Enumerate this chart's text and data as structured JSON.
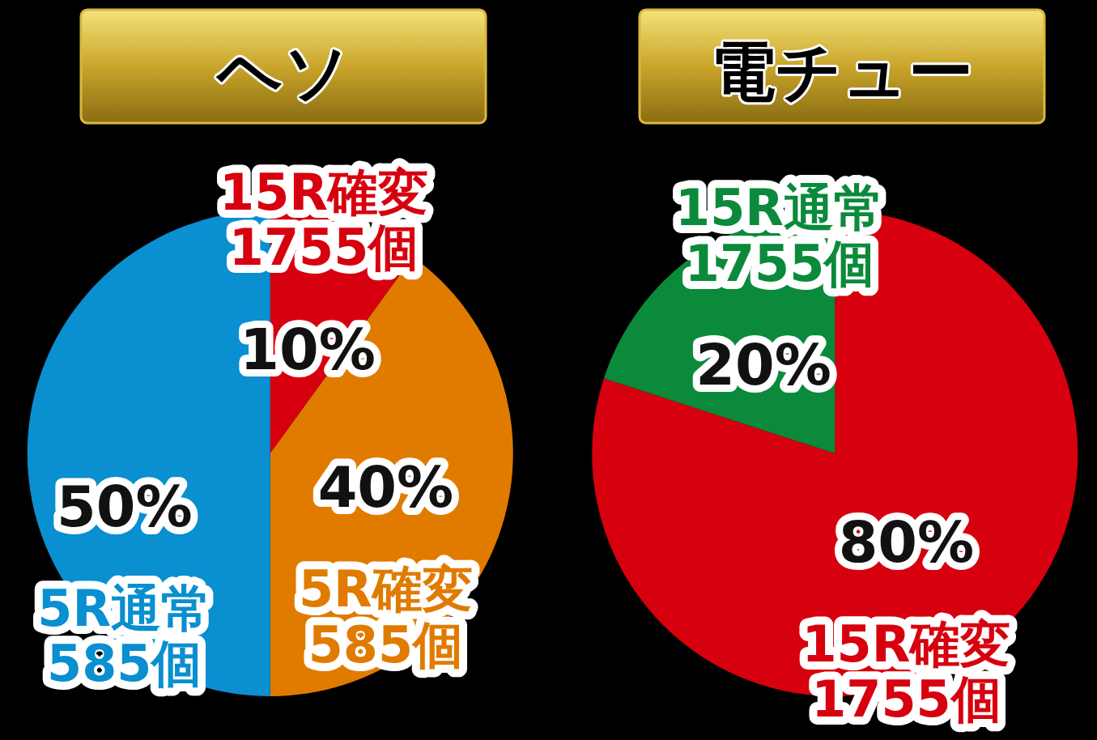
{
  "chart_data": [
    {
      "type": "pie",
      "title": "ヘソ",
      "categories": [
        "15R確変\n1755個",
        "5R確変\n585個",
        "5R通常\n585個"
      ],
      "values": [
        10,
        40,
        50
      ],
      "colors": [
        "#d7000f",
        "#e07b00",
        "#0a8fd0"
      ],
      "value_labels": [
        "10%",
        "40%",
        "50%"
      ]
    },
    {
      "type": "pie",
      "title": "電チュー",
      "categories": [
        "15R確変\n1755個",
        "15R通常\n1755個"
      ],
      "values": [
        80,
        20
      ],
      "colors": [
        "#d7000f",
        "#0b8a3c"
      ],
      "value_labels": [
        "80%",
        "20%"
      ]
    }
  ]
}
